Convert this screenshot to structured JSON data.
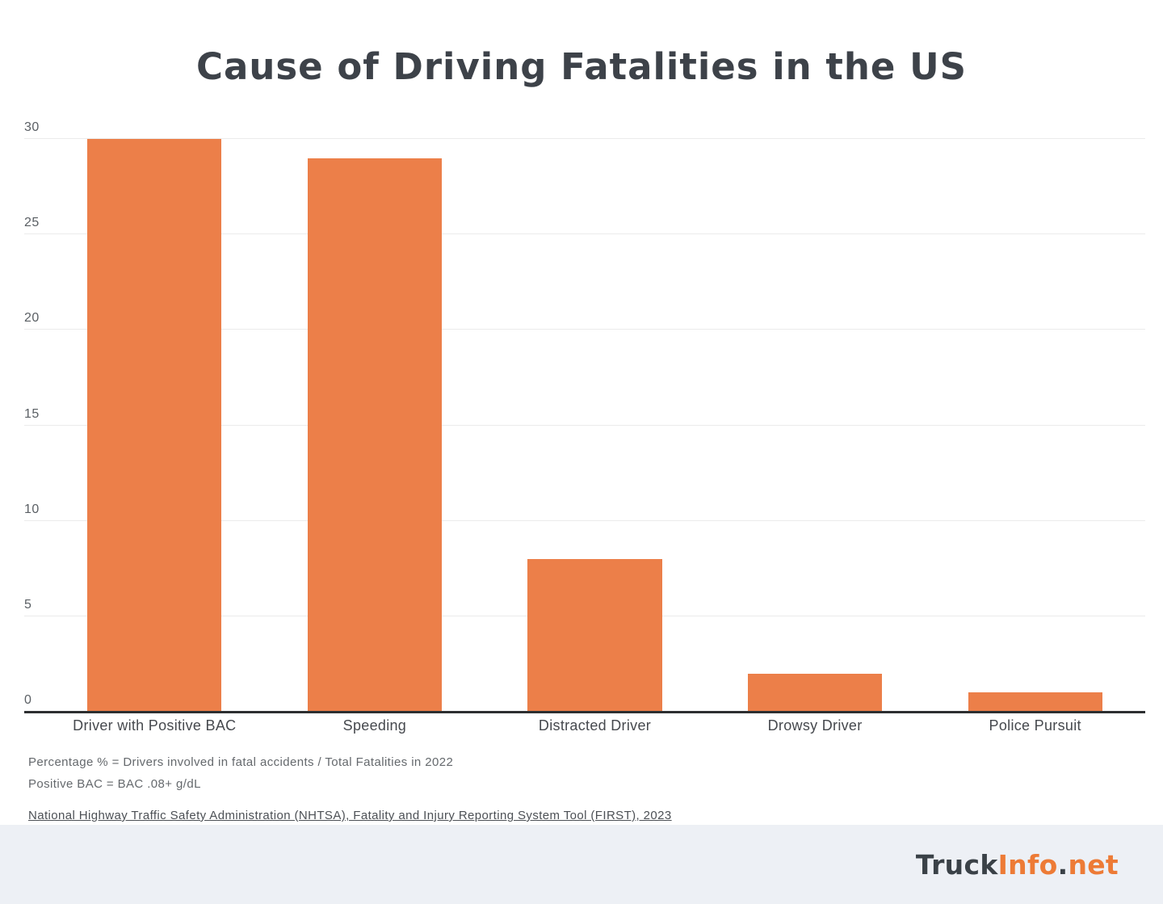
{
  "title": "Cause of Driving Fatalities in the US",
  "chart_data": {
    "type": "bar",
    "categories": [
      "Driver with Positive BAC",
      "Speeding",
      "Distracted Driver",
      "Drowsy Driver",
      "Police Pursuit"
    ],
    "values": [
      30,
      29,
      8,
      2,
      1
    ],
    "title": "Cause of Driving Fatalities in the US",
    "xlabel": "",
    "ylabel": "",
    "ylim": [
      0,
      30
    ],
    "yticks": [
      0,
      5,
      10,
      15,
      20,
      25,
      30
    ],
    "grid": true,
    "legend": "none",
    "bar_color": "#EC7F49"
  },
  "footnotes": {
    "line1": "Percentage % = Drivers involved in fatal accidents / Total Fatalities in 2022",
    "line2": "Positive BAC = BAC .08+ g/dL",
    "source": "National Highway Traffic Safety Administration (NHTSA), Fatality and Injury Reporting System Tool (FIRST), 2023"
  },
  "footer": {
    "background": "#EDF0F5",
    "logo": {
      "part1": "Truck",
      "part2": "Info",
      "part3": ".",
      "part4": "net"
    }
  },
  "colors": {
    "title_text": "#3D4249",
    "axis_line": "#2D2F31",
    "gridline": "#EBEBEB",
    "tick_text": "#5A5F64",
    "x_label_text": "#46494E",
    "footnote_text": "#65696D",
    "logo_dark": "#3A4147",
    "logo_orange": "#ED7B36"
  }
}
